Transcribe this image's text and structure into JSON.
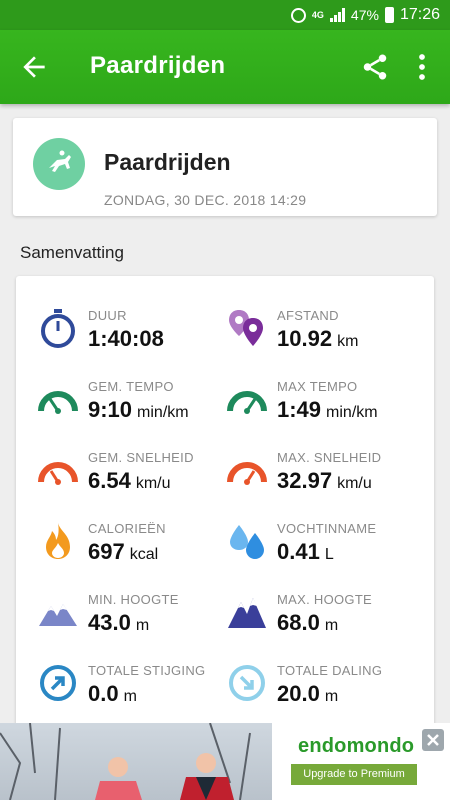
{
  "status_bar": {
    "network": "4G",
    "battery": "47%",
    "time": "17:26"
  },
  "app_bar": {
    "title": "Paardrijden"
  },
  "activity": {
    "name": "Paardrijden",
    "date": "ZONDAG, 30 DEC. 2018 14:29"
  },
  "summary": {
    "title": "Samenvatting",
    "stats": [
      {
        "label": "DUUR",
        "value": "1:40:08",
        "unit": ""
      },
      {
        "label": "AFSTAND",
        "value": "10.92",
        "unit": "km"
      },
      {
        "label": "GEM. TEMPO",
        "value": "9:10",
        "unit": "min/km"
      },
      {
        "label": "MAX TEMPO",
        "value": "1:49",
        "unit": "min/km"
      },
      {
        "label": "GEM. SNELHEID",
        "value": "6.54",
        "unit": "km/u"
      },
      {
        "label": "MAX. SNELHEID",
        "value": "32.97",
        "unit": "km/u"
      },
      {
        "label": "CALORIEËN",
        "value": "697",
        "unit": "kcal"
      },
      {
        "label": "VOCHTINNAME",
        "value": "0.41",
        "unit": "L"
      },
      {
        "label": "MIN. HOOGTE",
        "value": "43.0",
        "unit": "m"
      },
      {
        "label": "MAX. HOOGTE",
        "value": "68.0",
        "unit": "m"
      },
      {
        "label": "TOTALE STIJGING",
        "value": "0.0",
        "unit": "m"
      },
      {
        "label": "TOTALE DALING",
        "value": "20.0",
        "unit": "m"
      }
    ]
  },
  "ad": {
    "logo": "endomondo",
    "cta": "Upgrade to Premium"
  },
  "colors": {
    "status_bar": "#2e9a1b",
    "app_bar": "#34b01c",
    "activity_icon": "#6fd0a2",
    "duration_icon": "#2f4a9a",
    "distance_icon": "#8a4aa8",
    "tempo_icon": "#1e8a5c",
    "speed_icon": "#e8542a",
    "calories_icon": "#f39a1e",
    "water_icon": "#2f8ee0",
    "altitude_icon": "#3a3f9a",
    "ascent_icon": "#2a87c4",
    "descent_icon": "#8fd0ea"
  }
}
